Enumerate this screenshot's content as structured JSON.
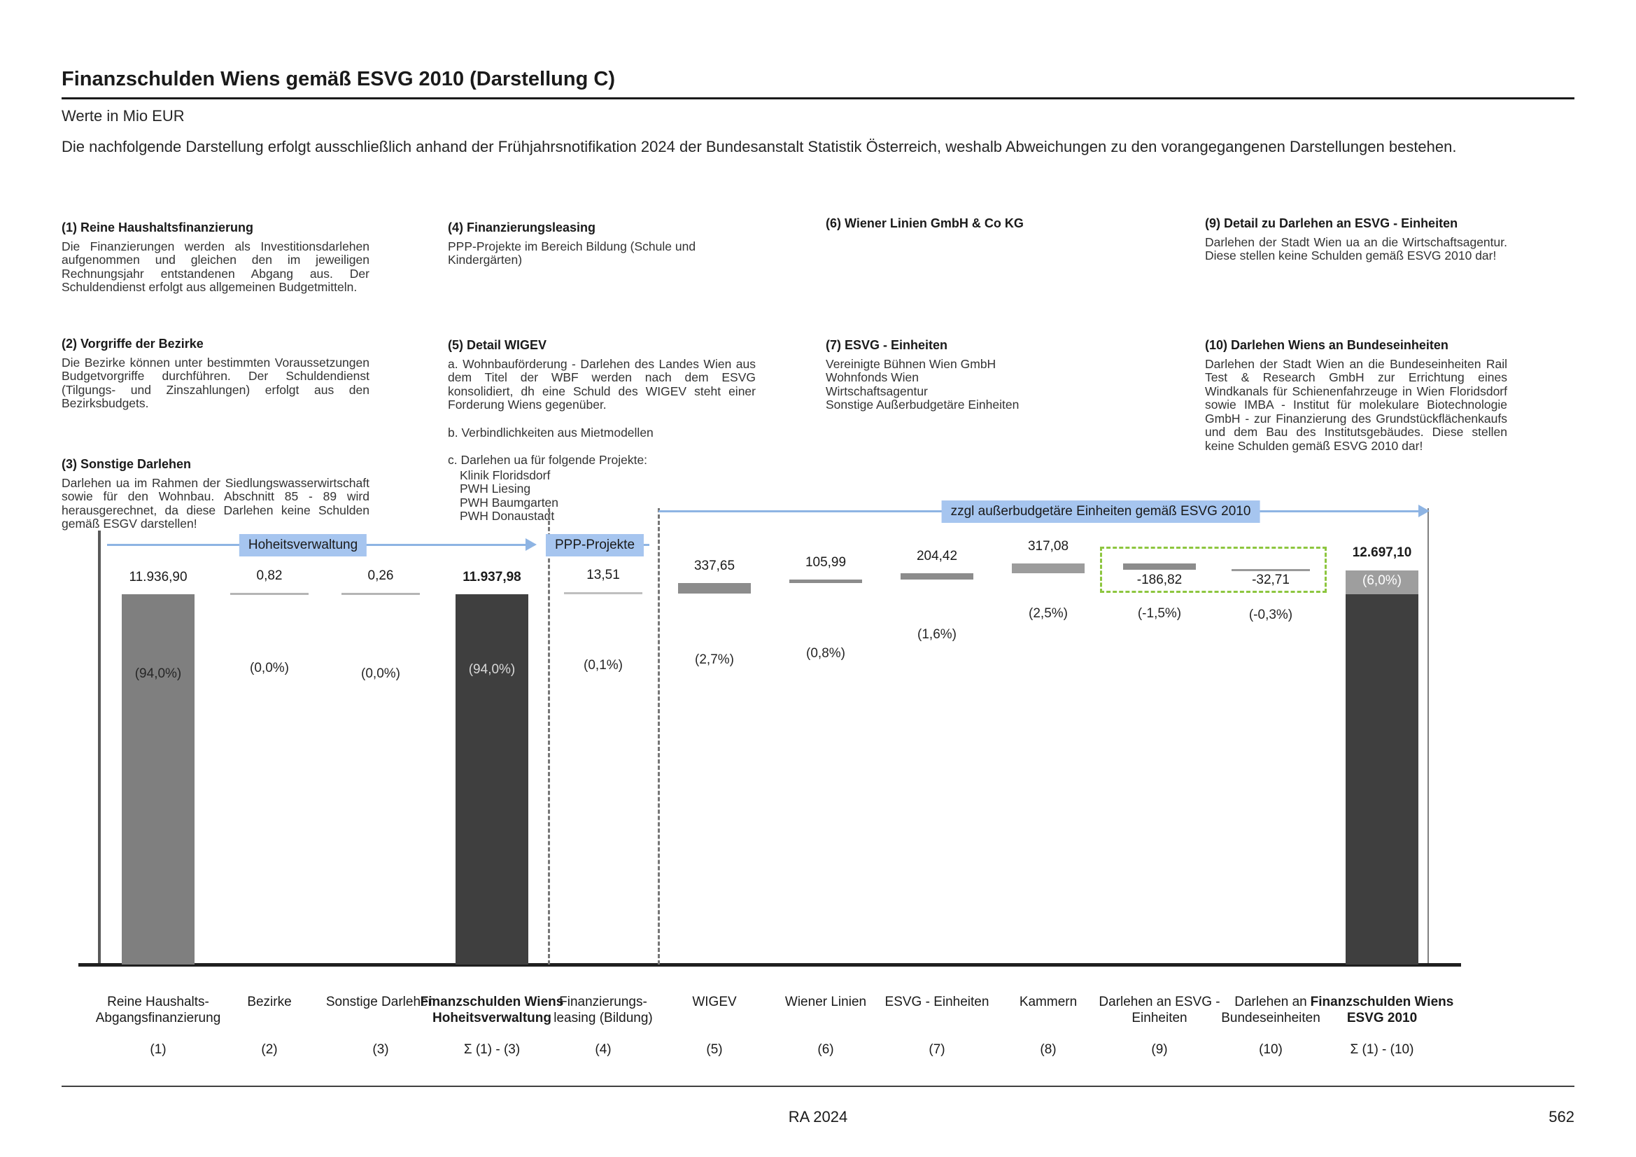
{
  "page": {
    "title": "Finanzschulden Wiens gemäß ESVG 2010 (Darstellung C)",
    "subtitle": "Werte in Mio EUR",
    "intro": "Die nachfolgende Darstellung erfolgt ausschließlich anhand der Frühjahrsnotifikation 2024 der Bundesanstalt Statistik Österreich, weshalb Abweichungen zu den vorangegangenen Darstellungen bestehen.",
    "footer_center": "RA 2024",
    "page_number": "562"
  },
  "notes": {
    "n1": {
      "title": "(1) Reine Haushaltsfinanzierung",
      "body": "Die Finanzierungen werden als Investitionsdarlehen aufgenommen und gleichen den im jeweiligen Rechnungsjahr entstandenen Abgang aus. Der Schuldendienst erfolgt aus allgemeinen Budgetmitteln."
    },
    "n2": {
      "title": "(2) Vorgriffe der Bezirke",
      "body": "Die Bezirke können unter bestimmten Voraussetzungen Budgetvorgriffe durchführen. Der Schuldendienst (Tilgungs- und Zinszahlungen) erfolgt aus den Bezirksbudgets."
    },
    "n3": {
      "title": "(3) Sonstige Darlehen",
      "body": "Darlehen ua im Rahmen der Siedlungswasserwirtschaft sowie für den Wohnbau. Abschnitt 85 - 89 wird herausgerechnet, da diese Darlehen keine Schulden gemäß ESGV darstellen!"
    },
    "n4": {
      "title": "(4) Finanzierungsleasing",
      "body": "PPP-Projekte im Bereich Bildung (Schule und Kindergärten)"
    },
    "n5": {
      "title": "(5) Detail WIGEV",
      "a": "a. Wohnbauförderung - Darlehen des Landes Wien aus dem Titel der WBF werden nach dem ESVG konsolidiert, dh eine Schuld des WIGEV steht einer Forderung Wiens gegenüber.",
      "b": "b. Verbindlichkeiten aus Mietmodellen",
      "c": "c. Darlehen ua für folgende Projekte:",
      "projects": [
        "Klinik Floridsdorf",
        "PWH Liesing",
        "PWH Baumgarten",
        "PWH Donaustadt"
      ]
    },
    "n6": {
      "title": "(6) Wiener Linien GmbH & Co KG"
    },
    "n7": {
      "title": "(7) ESVG - Einheiten",
      "items": [
        "Vereinigte Bühnen Wien GmbH",
        "Wohnfonds Wien",
        "Wirtschaftsagentur",
        "Sonstige Außerbudgetäre Einheiten"
      ]
    },
    "n9": {
      "title": "(9) Detail zu Darlehen an ESVG - Einheiten",
      "body": "Darlehen der Stadt Wien ua an die Wirtschaftsagentur. Diese stellen keine Schulden gemäß ESVG 2010 dar!"
    },
    "n10": {
      "title": "(10) Darlehen Wiens an Bundeseinheiten",
      "body": "Darlehen der Stadt Wien an die Bundeseinheiten Rail Test & Research GmbH zur Errichtung eines Windkanals für Schienenfahrzeuge in Wien Floridsdorf sowie IMBA - Institut für molekulare Biotechnologie GmbH - zur Finanzierung des Grundstückflächenkaufs und dem Bau des Institutsgebäudes. Diese stellen keine Schulden gemäß ESVG 2010 dar!"
    }
  },
  "chart_data": {
    "type": "bar",
    "subtype": "waterfall",
    "title": "Finanzschulden Wiens gemäß ESVG 2010 (Darstellung C)",
    "ylabel": "Mio EUR",
    "grid": false,
    "group_labels": {
      "left": "Hoheitsverwaltung",
      "mid": "PPP-Projekte",
      "right": "zzgl außerbudgetäre Einheiten gemäß ESVG 2010"
    },
    "columns": [
      {
        "label": "Reine Haushalts-Abgangsfinanzierung",
        "index": "(1)",
        "value": 11936.9,
        "value_label": "11.936,90",
        "pct": "(94,0%)",
        "kind": "absolute"
      },
      {
        "label": "Bezirke",
        "index": "(2)",
        "value": 0.82,
        "value_label": "0,82",
        "pct": "(0,0%)",
        "kind": "delta"
      },
      {
        "label": "Sonstige Darlehen",
        "index": "(3)",
        "value": 0.26,
        "value_label": "0,26",
        "pct": "(0,0%)",
        "kind": "delta"
      },
      {
        "label": "Finanzschulden Wiens Hoheitsverwaltung",
        "index": "Σ (1) - (3)",
        "value": 11937.98,
        "value_label": "11.937,98",
        "pct": "(94,0%)",
        "kind": "subtotal"
      },
      {
        "label": "Finanzierungs-leasing (Bildung)",
        "index": "(4)",
        "value": 13.51,
        "value_label": "13,51",
        "pct": "(0,1%)",
        "kind": "delta"
      },
      {
        "label": "WIGEV",
        "index": "(5)",
        "value": 337.65,
        "value_label": "337,65",
        "pct": "(2,7%)",
        "kind": "delta"
      },
      {
        "label": "Wiener Linien",
        "index": "(6)",
        "value": 105.99,
        "value_label": "105,99",
        "pct": "(0,8%)",
        "kind": "delta"
      },
      {
        "label": "ESVG - Einheiten",
        "index": "(7)",
        "value": 204.42,
        "value_label": "204,42",
        "pct": "(1,6%)",
        "kind": "delta"
      },
      {
        "label": "Kammern",
        "index": "(8)",
        "value": 317.08,
        "value_label": "317,08",
        "pct": "(2,5%)",
        "kind": "delta"
      },
      {
        "label": "Darlehen an ESVG - Einheiten",
        "index": "(9)",
        "value": -186.82,
        "value_label": "-186,82",
        "pct": "(-1,5%)",
        "kind": "delta-negative"
      },
      {
        "label": "Darlehen an Bundeseinheiten",
        "index": "(10)",
        "value": -32.71,
        "value_label": "-32,71",
        "pct": "(-0,3%)",
        "kind": "delta-negative"
      },
      {
        "label": "Finanzschulden Wiens ESVG 2010",
        "index": "Σ (1) - (10)",
        "value": 12697.1,
        "value_label": "12.697,10",
        "pct": "(6,0%)",
        "kind": "total"
      }
    ],
    "colors": {
      "bar_gray": "#7f7f7f",
      "bar_dark": "#3f3f3f",
      "bar_float": "#8c8c8c",
      "bar_light_segment": "#9e9e9e",
      "arrow_blue": "#8eb4e3",
      "label_blue_bg": "#a6c5ef",
      "dashed_green": "#8dc63f"
    }
  }
}
